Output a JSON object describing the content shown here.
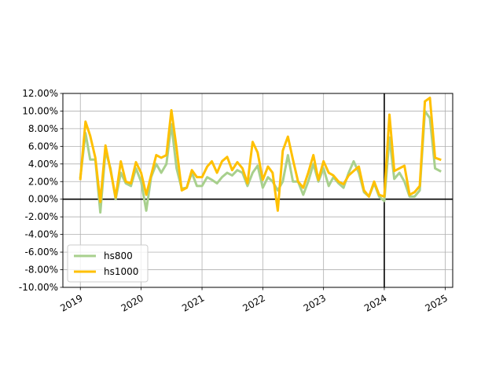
{
  "chart_data": {
    "type": "line",
    "title": "",
    "xlabel": "",
    "ylabel": "",
    "xlim": [
      "2018-09-18",
      "2025-02-15"
    ],
    "ylim": [
      -0.1,
      0.12
    ],
    "y_tick_values": [
      -0.1,
      -0.08,
      -0.06,
      -0.04,
      -0.02,
      0.0,
      0.02,
      0.04,
      0.06,
      0.08,
      0.1,
      0.12
    ],
    "y_tick_labels": [
      "-10.00%",
      "-8.00%",
      "-6.00%",
      "-4.00%",
      "-2.00%",
      "0.00%",
      "2.00%",
      "4.00%",
      "6.00%",
      "8.00%",
      "10.00%",
      "12.00%"
    ],
    "x_tick_values": [
      "2019-01-01",
      "2020-01-01",
      "2021-01-01",
      "2022-01-01",
      "2023-01-01",
      "2024-01-01",
      "2025-01-01"
    ],
    "x_tick_labels": [
      "2019",
      "2020",
      "2021",
      "2022",
      "2023",
      "2024",
      "2025"
    ],
    "x_tick_rotation_deg": 30,
    "grid": true,
    "legend_position": "lower-left",
    "reference_lines": {
      "horizontal_y": 0.0,
      "vertical_x": "2024-01-01"
    },
    "x": [
      "2019-01-01",
      "2019-02-01",
      "2019-03-01",
      "2019-04-01",
      "2019-05-01",
      "2019-06-01",
      "2019-07-01",
      "2019-08-01",
      "2019-09-01",
      "2019-10-01",
      "2019-11-01",
      "2019-12-01",
      "2020-01-01",
      "2020-02-01",
      "2020-03-01",
      "2020-04-01",
      "2020-05-01",
      "2020-06-01",
      "2020-07-01",
      "2020-08-01",
      "2020-09-01",
      "2020-10-01",
      "2020-11-01",
      "2020-12-01",
      "2021-01-01",
      "2021-02-01",
      "2021-03-01",
      "2021-04-01",
      "2021-05-01",
      "2021-06-01",
      "2021-07-01",
      "2021-08-01",
      "2021-09-01",
      "2021-10-01",
      "2021-11-01",
      "2021-12-01",
      "2022-01-01",
      "2022-02-01",
      "2022-03-01",
      "2022-04-01",
      "2022-05-01",
      "2022-06-01",
      "2022-07-01",
      "2022-08-01",
      "2022-09-01",
      "2022-10-01",
      "2022-11-01",
      "2022-12-01",
      "2023-01-01",
      "2023-02-01",
      "2023-03-01",
      "2023-04-01",
      "2023-05-01",
      "2023-06-01",
      "2023-07-01",
      "2023-08-01",
      "2023-09-01",
      "2023-10-01",
      "2023-11-01",
      "2023-12-01",
      "2024-01-01",
      "2024-02-01",
      "2024-03-01",
      "2024-04-01",
      "2024-05-01",
      "2024-06-01",
      "2024-07-01",
      "2024-08-01",
      "2024-09-01",
      "2024-10-01",
      "2024-11-01",
      "2024-12-01"
    ],
    "series": [
      {
        "name": "hs800",
        "color": "#a8d08d",
        "values": [
          0.025,
          0.075,
          0.045,
          0.045,
          -0.015,
          0.055,
          0.035,
          0.0,
          0.03,
          0.018,
          0.015,
          0.035,
          0.02,
          -0.013,
          0.025,
          0.04,
          0.03,
          0.04,
          0.085,
          0.035,
          0.012,
          0.013,
          0.03,
          0.015,
          0.015,
          0.025,
          0.022,
          0.018,
          0.025,
          0.03,
          0.027,
          0.033,
          0.03,
          0.015,
          0.03,
          0.038,
          0.013,
          0.025,
          0.02,
          0.01,
          0.02,
          0.05,
          0.02,
          0.02,
          0.005,
          0.02,
          0.04,
          0.02,
          0.035,
          0.015,
          0.025,
          0.018,
          0.013,
          0.03,
          0.043,
          0.03,
          0.008,
          0.003,
          0.018,
          0.003,
          -0.002,
          0.07,
          0.023,
          0.03,
          0.02,
          0.003,
          0.003,
          0.01,
          0.1,
          0.092,
          0.035,
          0.032
        ]
      },
      {
        "name": "hs1000",
        "color": "#ffc000",
        "values": [
          0.023,
          0.088,
          0.072,
          0.047,
          -0.003,
          0.061,
          0.033,
          0.002,
          0.043,
          0.02,
          0.018,
          0.042,
          0.03,
          0.005,
          0.027,
          0.05,
          0.047,
          0.05,
          0.101,
          0.058,
          0.01,
          0.013,
          0.033,
          0.025,
          0.025,
          0.037,
          0.043,
          0.03,
          0.043,
          0.048,
          0.033,
          0.042,
          0.035,
          0.018,
          0.065,
          0.053,
          0.022,
          0.037,
          0.03,
          -0.013,
          0.055,
          0.071,
          0.045,
          0.02,
          0.013,
          0.03,
          0.05,
          0.022,
          0.043,
          0.03,
          0.027,
          0.02,
          0.017,
          0.027,
          0.032,
          0.037,
          0.01,
          0.003,
          0.02,
          0.005,
          0.003,
          0.096,
          0.032,
          0.035,
          0.038,
          0.005,
          0.008,
          0.015,
          0.111,
          0.115,
          0.047,
          0.045
        ]
      }
    ]
  }
}
